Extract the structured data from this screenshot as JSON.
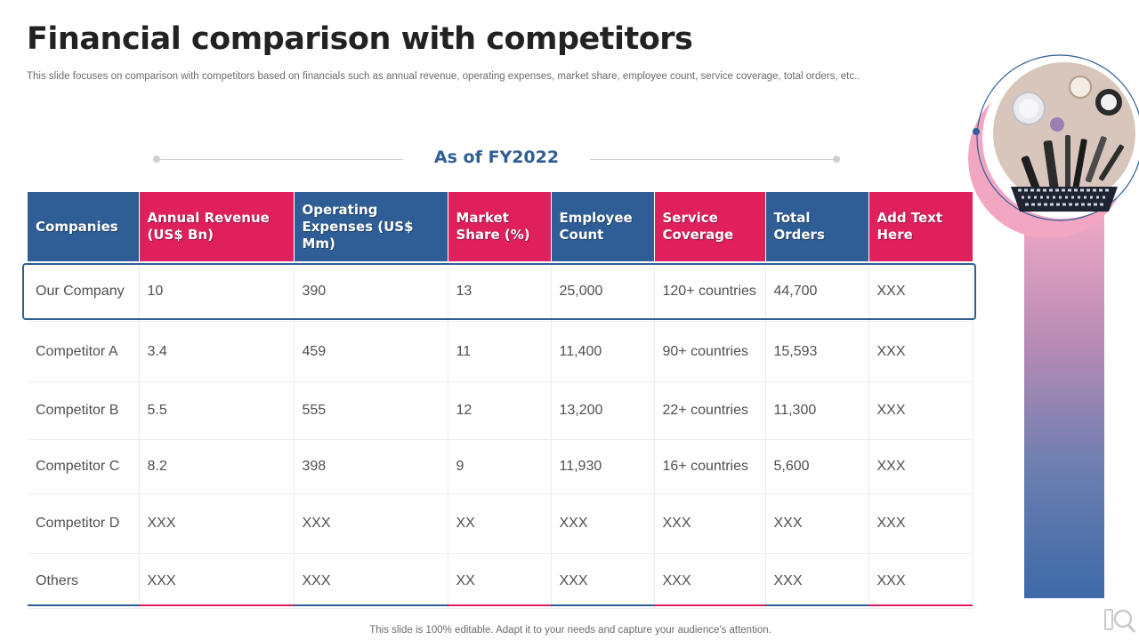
{
  "title": "Financial comparison with competitors",
  "subtitle": "This slide focuses on comparison with competitors based on financials such as annual revenue, operating expenses, market share, employee count, service coverage, total orders, etc..",
  "as_of": "As of FY2022",
  "table": {
    "headers": [
      {
        "label": "Companies",
        "color": "#2f5e97"
      },
      {
        "label": "Annual Revenue (US$ Bn)",
        "color": "#e0205c"
      },
      {
        "label": "Operating Expenses (US$ Mm)",
        "color": "#2f5e97"
      },
      {
        "label": "Market Share (%)",
        "color": "#e0205c"
      },
      {
        "label": "Employee Count",
        "color": "#2f5e97"
      },
      {
        "label": "Service Coverage",
        "color": "#e0205c"
      },
      {
        "label": "Total Orders",
        "color": "#2f5e97"
      },
      {
        "label": "Add Text Here",
        "color": "#e0205c"
      }
    ],
    "rows": [
      [
        "Our Company",
        "10",
        "390",
        "13",
        "25,000",
        "120+ countries",
        "44,700",
        "XXX"
      ],
      [
        "Competitor A",
        "3.4",
        "459",
        "11",
        "11,400",
        "90+ countries",
        "15,593",
        "XXX"
      ],
      [
        "Competitor B",
        "5.5",
        "555",
        "12",
        "13,200",
        "22+ countries",
        "11,300",
        "XXX"
      ],
      [
        "Competitor C",
        "8.2",
        "398",
        "9",
        "11,930",
        "16+ countries",
        "5,600",
        "XXX"
      ],
      [
        "Competitor D",
        "XXX",
        "XXX",
        "XX",
        "XXX",
        "XXX",
        "XXX",
        "XXX"
      ],
      [
        "Others",
        "XXX",
        "XXX",
        "XX",
        "XXX",
        "XXX",
        "XXX",
        "XXX"
      ]
    ]
  },
  "footer": "This slide is 100% editable. Adapt it to your needs and capture your audience's attention.",
  "colors": {
    "blue": "#2f5e97",
    "pink": "#e0205c"
  }
}
